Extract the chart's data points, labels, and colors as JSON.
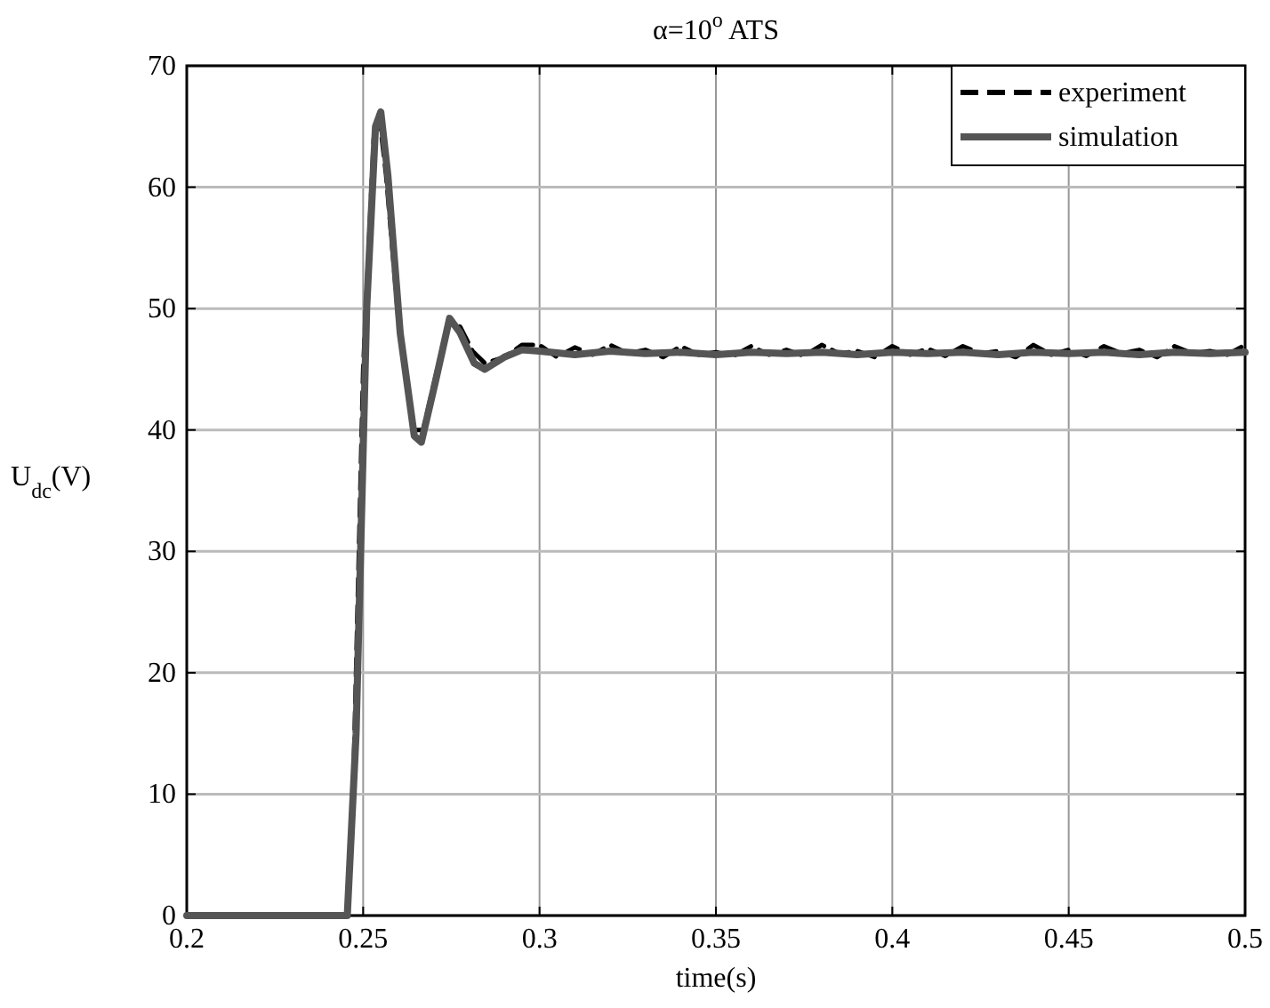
{
  "chart_data": {
    "type": "line",
    "title": "α=10$^{o}$ ATS",
    "xlabel": "time(s)",
    "ylabel": "U$_{dc}$(V)",
    "xlim": [
      0.2,
      0.5
    ],
    "xticks": [
      0.2,
      0.25,
      0.3,
      0.35,
      0.4,
      0.45,
      0.5
    ],
    "ylim": [
      0,
      70
    ],
    "yticks": [
      0,
      10,
      20,
      30,
      40,
      50,
      60,
      70
    ],
    "grid": true,
    "legend": "top right",
    "series": [
      {
        "name": "experiment",
        "color": "#000000",
        "line_style": "dashed",
        "x": [
          0.2,
          0.2455,
          0.247,
          0.25,
          0.253,
          0.2545,
          0.2565,
          0.26,
          0.2645,
          0.267,
          0.271,
          0.2745,
          0.2775,
          0.281,
          0.2845,
          0.29,
          0.295,
          0.3,
          0.305,
          0.31,
          0.315,
          0.32,
          0.325,
          0.33,
          0.335,
          0.34,
          0.345,
          0.35,
          0.355,
          0.36,
          0.365,
          0.37,
          0.375,
          0.38,
          0.385,
          0.39,
          0.395,
          0.4,
          0.405,
          0.41,
          0.415,
          0.42,
          0.425,
          0.43,
          0.435,
          0.44,
          0.445,
          0.45,
          0.455,
          0.46,
          0.465,
          0.47,
          0.475,
          0.48,
          0.485,
          0.49,
          0.495,
          0.5
        ],
        "values": [
          0,
          0,
          8,
          45,
          64,
          66,
          61,
          49,
          40,
          40,
          45,
          49,
          48.5,
          46.5,
          45.5,
          46,
          47,
          47,
          46,
          46.8,
          46.2,
          47,
          46.3,
          46.6,
          46,
          46.9,
          46.2,
          46.4,
          46.1,
          46.9,
          46.2,
          46.6,
          46.1,
          47,
          46.3,
          46.5,
          46,
          46.9,
          46.2,
          46.7,
          46.1,
          46.9,
          46.3,
          46.5,
          46,
          47,
          46.2,
          46.6,
          46.1,
          46.9,
          46.3,
          46.6,
          46,
          46.9,
          46.3,
          46.5,
          46.2,
          47
        ]
      },
      {
        "name": "simulation",
        "color": "#555555",
        "line_style": "solid",
        "x": [
          0.2,
          0.2455,
          0.248,
          0.251,
          0.2535,
          0.255,
          0.257,
          0.2605,
          0.2645,
          0.2665,
          0.2705,
          0.2745,
          0.2775,
          0.2815,
          0.2845,
          0.29,
          0.295,
          0.3,
          0.31,
          0.32,
          0.33,
          0.34,
          0.35,
          0.36,
          0.37,
          0.38,
          0.39,
          0.4,
          0.41,
          0.42,
          0.43,
          0.44,
          0.45,
          0.46,
          0.47,
          0.48,
          0.49,
          0.5
        ],
        "values": [
          0,
          0,
          15,
          50,
          65,
          66.2,
          61,
          48,
          39.5,
          39,
          44,
          49.2,
          48,
          45.5,
          45,
          46,
          46.6,
          46.5,
          46.2,
          46.5,
          46.3,
          46.4,
          46.2,
          46.4,
          46.3,
          46.4,
          46.2,
          46.4,
          46.3,
          46.4,
          46.2,
          46.4,
          46.3,
          46.4,
          46.2,
          46.4,
          46.3,
          46.4
        ]
      }
    ]
  }
}
